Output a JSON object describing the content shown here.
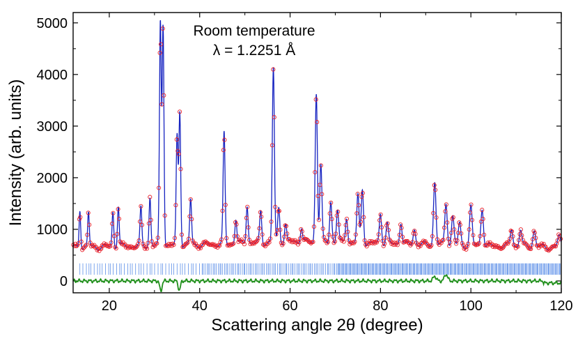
{
  "chart_data": {
    "type": "line",
    "title": "",
    "annotation_lines": [
      "Room temperature",
      "λ = 1.2251 Å"
    ],
    "xlabel": "Scattering angle 2θ (degree)",
    "ylabel": "Intensity (arb. units)",
    "xlim": [
      12,
      120
    ],
    "ylim": [
      -230,
      5200
    ],
    "x_ticks": [
      20,
      40,
      60,
      80,
      100,
      120
    ],
    "y_ticks": [
      0,
      1000,
      2000,
      3000,
      4000,
      5000
    ],
    "grid": false,
    "legend": "none",
    "series": [
      {
        "role": "observed",
        "style": "open red circles",
        "color": "#e8202a",
        "peaks": [
          {
            "x": 13.5,
            "y": 1400
          },
          {
            "x": 15.4,
            "y": 1320
          },
          {
            "x": 20.8,
            "y": 1340
          },
          {
            "x": 22.0,
            "y": 1470
          },
          {
            "x": 27.0,
            "y": 1400
          },
          {
            "x": 29.0,
            "y": 1620
          },
          {
            "x": 31.3,
            "y": 5000
          },
          {
            "x": 31.9,
            "y": 4980
          },
          {
            "x": 35.0,
            "y": 2800
          },
          {
            "x": 35.6,
            "y": 3300
          },
          {
            "x": 38.0,
            "y": 1580
          },
          {
            "x": 45.4,
            "y": 2850
          },
          {
            "x": 48.0,
            "y": 1200
          },
          {
            "x": 50.5,
            "y": 1480
          },
          {
            "x": 53.5,
            "y": 1340
          },
          {
            "x": 56.3,
            "y": 4130
          },
          {
            "x": 57.5,
            "y": 1420
          },
          {
            "x": 59.0,
            "y": 1100
          },
          {
            "x": 62.5,
            "y": 1050
          },
          {
            "x": 65.8,
            "y": 3650
          },
          {
            "x": 66.8,
            "y": 2250
          },
          {
            "x": 69.0,
            "y": 1550
          },
          {
            "x": 70.5,
            "y": 1380
          },
          {
            "x": 72.5,
            "y": 1250
          },
          {
            "x": 75.0,
            "y": 1650
          },
          {
            "x": 76.0,
            "y": 1780
          },
          {
            "x": 80.0,
            "y": 1320
          },
          {
            "x": 81.5,
            "y": 1100
          },
          {
            "x": 84.5,
            "y": 1150
          },
          {
            "x": 87.5,
            "y": 1000
          },
          {
            "x": 92.0,
            "y": 1920
          },
          {
            "x": 94.5,
            "y": 1520
          },
          {
            "x": 96.0,
            "y": 1250
          },
          {
            "x": 97.5,
            "y": 1100
          },
          {
            "x": 100.0,
            "y": 1440
          },
          {
            "x": 102.5,
            "y": 1420
          },
          {
            "x": 109.0,
            "y": 1010
          },
          {
            "x": 111.0,
            "y": 1000
          },
          {
            "x": 114.0,
            "y": 980
          },
          {
            "x": 119.5,
            "y": 870
          }
        ],
        "baseline_at_x": [
          [
            12,
            650
          ],
          [
            40,
            700
          ],
          [
            60,
            760
          ],
          [
            120,
            650
          ]
        ]
      },
      {
        "role": "calculated",
        "style": "solid blue line",
        "color": "#1522c0"
      },
      {
        "role": "Bragg reflection positions",
        "style": "vertical tick marks",
        "color": "#5a8ee8",
        "y_range": [
          120,
          340
        ],
        "x_start": 13.5,
        "x_end": 120
      },
      {
        "role": "difference",
        "style": "solid green line",
        "color": "#1f8f1a",
        "offset": 0,
        "notable_dips": [
          {
            "x": 31.4,
            "y": -200
          },
          {
            "x": 35.5,
            "y": -180
          }
        ],
        "notable_bumps": [
          {
            "x": 92.0,
            "y": 90
          },
          {
            "x": 94.5,
            "y": 130
          }
        ]
      }
    ]
  }
}
